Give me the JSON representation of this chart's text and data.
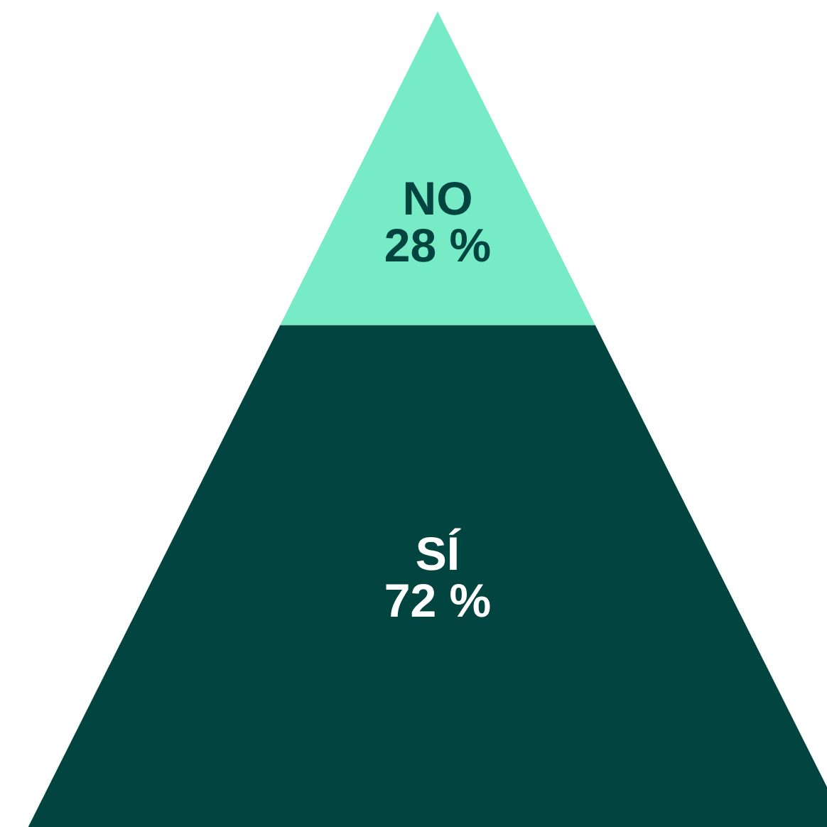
{
  "chart_data": {
    "type": "other",
    "categories": [
      "NO",
      "SÍ"
    ],
    "values": [
      28,
      72
    ],
    "value_labels": [
      "28 %",
      "72 %"
    ],
    "colors": [
      "#76ebc5",
      "#02443f"
    ]
  }
}
